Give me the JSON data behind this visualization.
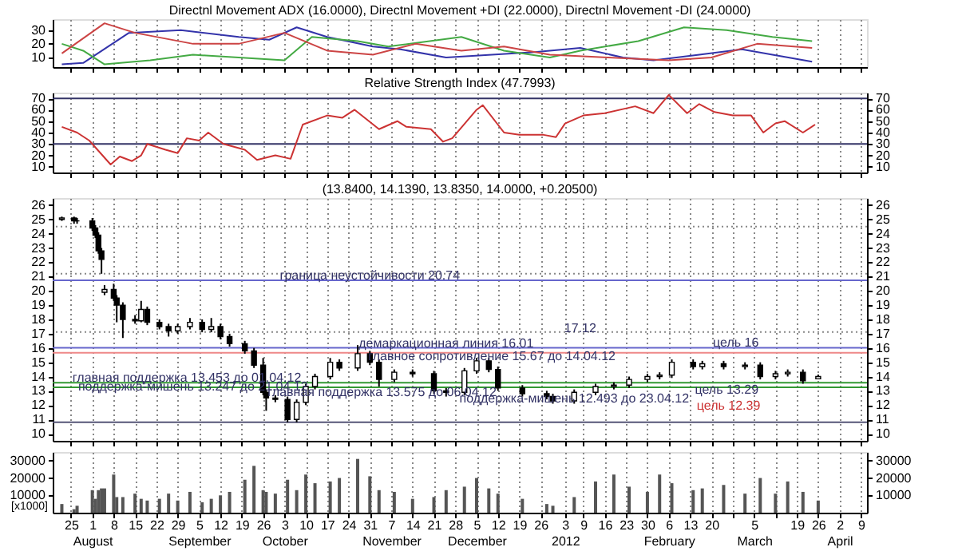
{
  "chart_data": [
    {
      "type": "line",
      "title": "Directnl Movement ADX (16.0000), Directnl Movement +DI (22.0000), Directnl Movement -DI (24.0000)",
      "xlim": [
        "2011-07-19",
        "2012-04-11"
      ],
      "ylim": [
        3,
        38
      ],
      "yticks": [
        10,
        20,
        30
      ],
      "grid": "x",
      "tick_labels": "y",
      "xticks": [
        "2011-07-25",
        "2011-08-01",
        "2011-08-08",
        "2011-08-15",
        "2011-08-22",
        "2011-08-29",
        "2011-09-05",
        "2011-09-12",
        "2011-09-19",
        "2011-09-26",
        "2011-10-03",
        "2011-10-10",
        "2011-10-17",
        "2011-10-24",
        "2011-10-31",
        "2011-11-07",
        "2011-11-14",
        "2011-11-21",
        "2011-11-28",
        "2011-12-05",
        "2011-12-12",
        "2011-12-19",
        "2011-12-26",
        "2012-01-03",
        "2012-01-09",
        "2012-01-16",
        "2012-01-23",
        "2012-01-30",
        "2012-02-06",
        "2012-02-13",
        "2012-02-20",
        "2012-02-27",
        "2012-03-05",
        "2012-03-12",
        "2012-03-19",
        "2012-03-26",
        "2012-04-02",
        "2012-04-09"
      ],
      "series": [
        {
          "color": "#3333aa",
          "x": [
            "2011-07-22",
            "2011-07-29",
            "2011-08-13",
            "2011-08-30",
            "2011-09-18",
            "2011-09-28",
            "2011-10-07",
            "2011-10-17",
            "2011-11-01",
            "2011-11-10",
            "2011-11-25",
            "2011-12-10",
            "2011-12-24",
            "2012-01-08",
            "2012-01-22",
            "2012-02-01",
            "2012-02-16",
            "2012-03-01",
            "2012-03-11",
            "2012-03-24"
          ],
          "values": [
            5,
            6,
            28,
            30,
            25,
            23,
            32,
            25,
            18,
            16,
            10,
            12,
            14,
            17,
            10,
            8,
            12,
            16,
            12,
            7
          ]
        },
        {
          "color": "#44aa44",
          "x": [
            "2011-07-22",
            "2011-07-29",
            "2011-08-05",
            "2011-08-20",
            "2011-09-03",
            "2011-09-18",
            "2011-10-03",
            "2011-10-12",
            "2011-10-27",
            "2011-11-06",
            "2011-11-30",
            "2011-12-14",
            "2011-12-29",
            "2012-01-08",
            "2012-01-27",
            "2012-02-11",
            "2012-02-25",
            "2012-03-11",
            "2012-03-24"
          ],
          "values": [
            20,
            15,
            5,
            8,
            12,
            10,
            8,
            25,
            22,
            18,
            25,
            15,
            10,
            15,
            22,
            32,
            30,
            25,
            22
          ]
        },
        {
          "color": "#cc4444",
          "x": [
            "2011-07-22",
            "2011-08-05",
            "2011-08-15",
            "2011-09-03",
            "2011-09-18",
            "2011-10-03",
            "2011-10-17",
            "2011-11-01",
            "2011-11-15",
            "2011-11-30",
            "2011-12-14",
            "2011-12-29",
            "2012-01-17",
            "2012-02-06",
            "2012-02-20",
            "2012-03-06",
            "2012-03-24"
          ],
          "values": [
            13,
            35,
            28,
            20,
            20,
            28,
            15,
            12,
            20,
            15,
            18,
            12,
            10,
            8,
            10,
            20,
            17
          ]
        }
      ]
    },
    {
      "type": "line",
      "title": "Relative Strength Index (47.7993)",
      "xlim": [
        "2011-07-19",
        "2012-04-11"
      ],
      "ylim": [
        5,
        75
      ],
      "yticks": [
        10,
        20,
        30,
        40,
        50,
        60,
        70
      ],
      "y2lim": [
        5,
        75
      ],
      "y2ticks": [
        10,
        20,
        30,
        40,
        50,
        60,
        70
      ],
      "grid": "x",
      "tick_labels": "y",
      "xticks": [
        "2011-07-25",
        "2011-08-01",
        "2011-08-08",
        "2011-08-15",
        "2011-08-22",
        "2011-08-29",
        "2011-09-05",
        "2011-09-12",
        "2011-09-19",
        "2011-09-26",
        "2011-10-03",
        "2011-10-10",
        "2011-10-17",
        "2011-10-24",
        "2011-10-31",
        "2011-11-07",
        "2011-11-14",
        "2011-11-21",
        "2011-11-28",
        "2011-12-05",
        "2011-12-12",
        "2011-12-19",
        "2011-12-26",
        "2012-01-03",
        "2012-01-09",
        "2012-01-16",
        "2012-01-23",
        "2012-01-30",
        "2012-02-06",
        "2012-02-13",
        "2012-02-20",
        "2012-02-27",
        "2012-03-05",
        "2012-03-12",
        "2012-03-19",
        "2012-03-26",
        "2012-04-02",
        "2012-04-09"
      ],
      "ref_lines": [
        {
          "axis": "y",
          "value": 70,
          "color": "#333366"
        },
        {
          "axis": "y",
          "value": 30,
          "color": "#333366"
        }
      ],
      "series": [
        {
          "color": "#cc3333",
          "x": [
            "2011-07-22",
            "2011-07-27",
            "2011-07-31",
            "2011-08-06",
            "2011-08-07",
            "2011-08-10",
            "2011-08-14",
            "2011-08-17",
            "2011-08-19",
            "2011-08-25",
            "2011-08-29",
            "2011-09-01",
            "2011-09-05",
            "2011-09-08",
            "2011-09-13",
            "2011-09-20",
            "2011-09-24",
            "2011-09-30",
            "2011-10-05",
            "2011-10-09",
            "2011-10-17",
            "2011-10-22",
            "2011-10-26",
            "2011-11-03",
            "2011-11-09",
            "2011-11-12",
            "2011-11-20",
            "2011-11-24",
            "2011-11-27",
            "2011-12-05",
            "2011-12-07",
            "2011-12-14",
            "2011-12-19",
            "2011-12-27",
            "2011-12-31",
            "2012-01-03",
            "2012-01-09",
            "2012-01-16",
            "2012-01-26",
            "2012-02-01",
            "2012-02-06",
            "2012-02-12",
            "2012-02-16",
            "2012-02-21",
            "2012-02-27",
            "2012-03-04",
            "2012-03-08",
            "2012-03-12",
            "2012-03-15",
            "2012-03-21",
            "2012-03-25"
          ],
          "values": [
            45,
            40,
            33,
            15,
            12,
            19,
            15,
            20,
            30,
            25,
            22,
            35,
            33,
            40,
            30,
            25,
            16,
            20,
            17,
            47,
            55,
            53,
            60,
            43,
            50,
            45,
            43,
            32,
            35,
            60,
            64,
            40,
            38,
            38,
            36,
            48,
            55,
            57,
            63,
            57,
            73,
            57,
            65,
            58,
            55,
            55,
            40,
            48,
            50,
            40,
            47
          ]
        }
      ]
    },
    {
      "type": "candlestick",
      "title": "(13.8400, 14.1390, 13.8350, 14.0000, +0.20500)",
      "xlim": [
        "2011-07-19",
        "2012-04-11"
      ],
      "ylim": [
        9.5,
        26.5
      ],
      "yticks": [
        10,
        11,
        12,
        13,
        14,
        15,
        16,
        17,
        18,
        19,
        20,
        21,
        22,
        23,
        24,
        25,
        26
      ],
      "y2lim": [
        9.5,
        26.5
      ],
      "y2ticks": [
        10,
        11,
        12,
        13,
        14,
        15,
        16,
        17,
        18,
        19,
        20,
        21,
        22,
        23,
        24,
        25,
        26
      ],
      "grid": "x",
      "tick_labels": "y",
      "xticks": [
        "2011-07-25",
        "2011-08-01",
        "2011-08-08",
        "2011-08-15",
        "2011-08-22",
        "2011-08-29",
        "2011-09-05",
        "2011-09-12",
        "2011-09-19",
        "2011-09-26",
        "2011-10-03",
        "2011-10-10",
        "2011-10-17",
        "2011-10-24",
        "2011-10-31",
        "2011-11-07",
        "2011-11-14",
        "2011-11-21",
        "2011-11-28",
        "2011-12-05",
        "2011-12-12",
        "2011-12-19",
        "2011-12-26",
        "2012-01-03",
        "2012-01-09",
        "2012-01-16",
        "2012-01-23",
        "2012-01-30",
        "2012-02-06",
        "2012-02-13",
        "2012-02-20",
        "2012-02-27",
        "2012-03-05",
        "2012-03-12",
        "2012-03-19",
        "2012-03-26",
        "2012-04-02",
        "2012-04-09"
      ],
      "x": [
        "2011-07-22",
        "2011-07-26",
        "2011-07-27",
        "2011-08-01",
        "2011-08-02",
        "2011-08-03",
        "2011-08-04",
        "2011-08-05",
        "2011-08-08",
        "2011-08-09",
        "2011-08-11",
        "2011-08-15",
        "2011-08-17",
        "2011-08-19",
        "2011-08-23",
        "2011-08-26",
        "2011-08-29",
        "2011-09-02",
        "2011-09-06",
        "2011-09-09",
        "2011-09-12",
        "2011-09-15",
        "2011-09-20",
        "2011-09-23",
        "2011-09-26",
        "2011-09-27",
        "2011-09-30",
        "2011-10-04",
        "2011-10-07",
        "2011-10-10",
        "2011-10-13",
        "2011-10-18",
        "2011-10-21",
        "2011-10-27",
        "2011-10-31",
        "2011-11-03",
        "2011-11-08",
        "2011-11-14",
        "2011-11-21",
        "2011-11-25",
        "2011-12-01",
        "2011-12-05",
        "2011-12-09",
        "2011-12-12",
        "2011-12-20",
        "2011-12-28",
        "2011-12-30",
        "2012-01-06",
        "2012-01-13",
        "2012-01-19",
        "2012-01-24",
        "2012-01-30",
        "2012-02-03",
        "2012-02-07",
        "2012-02-14",
        "2012-02-17",
        "2012-02-24",
        "2012-03-02",
        "2012-03-07",
        "2012-03-12",
        "2012-03-16",
        "2012-03-21",
        "2012-03-26"
      ],
      "ohlc": [
        [
          25.0,
          25.2,
          24.9,
          25.1
        ],
        [
          25.1,
          25.2,
          24.7,
          24.9
        ],
        [
          24.9,
          25.1,
          24.7,
          24.9
        ],
        [
          24.9,
          25.1,
          24.2,
          24.4
        ],
        [
          24.4,
          24.6,
          23.7,
          23.9
        ],
        [
          23.9,
          24.1,
          22.6,
          22.8
        ],
        [
          22.8,
          23.0,
          21.2,
          22.2
        ],
        [
          19.9,
          20.4,
          19.7,
          20.1
        ],
        [
          20.1,
          20.5,
          19.3,
          19.5
        ],
        [
          19.5,
          19.7,
          17.8,
          19.0
        ],
        [
          19.0,
          19.2,
          16.7,
          18.0
        ],
        [
          18.0,
          18.3,
          17.7,
          17.9
        ],
        [
          17.9,
          19.3,
          17.8,
          18.7
        ],
        [
          18.7,
          18.9,
          17.6,
          17.8
        ],
        [
          17.8,
          18.0,
          17.3,
          17.5
        ],
        [
          17.5,
          17.7,
          16.8,
          17.2
        ],
        [
          17.2,
          17.7,
          17.0,
          17.5
        ],
        [
          17.5,
          18.1,
          17.3,
          17.8
        ],
        [
          17.8,
          18.0,
          17.1,
          17.3
        ],
        [
          17.3,
          18.1,
          17.1,
          17.5
        ],
        [
          17.5,
          17.7,
          16.6,
          16.8
        ],
        [
          16.8,
          17.0,
          16.1,
          16.3
        ],
        [
          16.3,
          16.5,
          15.6,
          15.8
        ],
        [
          15.8,
          16.0,
          14.6,
          14.8
        ],
        [
          14.8,
          15.3,
          12.7,
          12.9
        ],
        [
          12.9,
          13.1,
          11.6,
          12.5
        ],
        [
          12.5,
          12.7,
          12.2,
          12.4
        ],
        [
          12.4,
          12.6,
          10.8,
          11.0
        ],
        [
          11.0,
          12.4,
          10.8,
          12.2
        ],
        [
          12.2,
          13.5,
          12.0,
          13.3
        ],
        [
          13.3,
          14.2,
          13.1,
          14.0
        ],
        [
          14.0,
          15.3,
          13.8,
          15.0
        ],
        [
          15.0,
          15.2,
          14.4,
          14.6
        ],
        [
          14.6,
          16.2,
          14.4,
          15.6
        ],
        [
          15.6,
          15.8,
          14.8,
          15.0
        ],
        [
          15.0,
          15.2,
          13.3,
          13.8
        ],
        [
          13.8,
          14.5,
          13.6,
          14.3
        ],
        [
          14.3,
          14.5,
          14.0,
          14.2
        ],
        [
          14.2,
          14.4,
          12.8,
          13.0
        ],
        [
          13.0,
          13.2,
          12.6,
          12.9
        ],
        [
          12.9,
          14.6,
          12.7,
          14.4
        ],
        [
          14.4,
          15.3,
          14.2,
          15.1
        ],
        [
          15.1,
          15.3,
          14.3,
          14.5
        ],
        [
          14.5,
          14.7,
          13.0,
          13.2
        ],
        [
          13.2,
          13.4,
          12.6,
          12.8
        ],
        [
          12.8,
          13.0,
          12.4,
          12.6
        ],
        [
          12.6,
          12.8,
          12.1,
          12.3
        ],
        [
          12.3,
          13.1,
          12.1,
          12.9
        ],
        [
          12.9,
          13.5,
          12.7,
          13.3
        ],
        [
          13.3,
          13.6,
          13.1,
          13.4
        ],
        [
          13.4,
          14.0,
          13.2,
          13.8
        ],
        [
          13.8,
          14.2,
          13.6,
          14.0
        ],
        [
          14.0,
          14.3,
          13.8,
          14.1
        ],
        [
          14.1,
          15.2,
          13.9,
          15.0
        ],
        [
          15.0,
          15.2,
          14.5,
          14.7
        ],
        [
          14.7,
          15.1,
          14.5,
          14.9
        ],
        [
          14.9,
          15.1,
          14.5,
          14.7
        ],
        [
          14.7,
          15.0,
          14.5,
          14.8
        ],
        [
          14.8,
          15.0,
          13.8,
          14.0
        ],
        [
          14.0,
          14.4,
          13.8,
          14.2
        ],
        [
          14.2,
          14.5,
          14.0,
          14.3
        ],
        [
          14.3,
          14.5,
          13.5,
          13.7
        ],
        [
          13.84,
          14.139,
          13.835,
          14.0
        ]
      ],
      "ref_lines": [
        {
          "axis": "y",
          "value": 24.5,
          "color": "#888888",
          "line_style": "dotted"
        },
        {
          "axis": "y",
          "value": 21.2,
          "color": "#888888",
          "line_style": "dotted"
        },
        {
          "axis": "y",
          "value": 20.74,
          "color": "#6666cc",
          "line_style": "solid"
        },
        {
          "axis": "y",
          "value": 17.12,
          "color": "#888888",
          "line_style": "dotted"
        },
        {
          "axis": "y",
          "value": 16.01,
          "color": "#6666cc",
          "line_style": "solid"
        },
        {
          "axis": "y",
          "value": 15.67,
          "color": "#ee8888",
          "line_style": "solid"
        },
        {
          "axis": "y",
          "value": 13.575,
          "color": "#339933",
          "line_style": "solid"
        },
        {
          "axis": "y",
          "value": 13.247,
          "color": "#339933",
          "line_style": "solid"
        },
        {
          "axis": "y",
          "value": 10.8,
          "color": "#555577",
          "line_style": "solid"
        }
      ],
      "annotations": [
        {
          "text": "граница неустойчивости 20.74",
          "x": "2011-10-31",
          "y": 21.0
        },
        {
          "text": "17.12",
          "x": "2012-01-08",
          "y": 17.35
        },
        {
          "text": "демаркационная линия 16.01",
          "x": "2011-11-25",
          "y": 16.25
        },
        {
          "text": "главное сопротивление 15.67 до 14.04.12",
          "x": "2011-12-10",
          "y": 15.35
        },
        {
          "text": "главная поддержка 13.453 до 01.04.12",
          "x": "2011-09-01",
          "y": 13.85
        },
        {
          "text": "поддержка-мишень 13.247 до 21.04.12",
          "x": "2011-09-03",
          "y": 13.247
        },
        {
          "text": "главная поддержка 13.575 до 06.04.12",
          "x": "2011-11-04",
          "y": 12.85
        },
        {
          "text": "поддержка-мишень 12.493 до 23.04.12",
          "x": "2012-01-06",
          "y": 12.4
        },
        {
          "text": "цель 16",
          "x": "2012-02-28",
          "y": 16.35
        },
        {
          "text": "цель 13.29",
          "x": "2012-02-25",
          "y": 13.0
        },
        "цель 12.39"
      ]
    },
    {
      "type": "bar",
      "xlim": [
        "2011-07-19",
        "2012-04-11"
      ],
      "ylim": [
        0,
        35000
      ],
      "yticks": [
        10000,
        20000,
        30000
      ],
      "y2lim": [
        0,
        35000
      ],
      "y2ticks": [
        10000,
        20000,
        30000
      ],
      "grid": "x",
      "color": "#555555",
      "xticks": [
        {
          "value": "2011-07-25",
          "label": "25"
        },
        {
          "value": "2011-08-01",
          "label": "1\nAugust"
        },
        {
          "value": "2011-08-08",
          "label": "8"
        },
        {
          "value": "2011-08-15",
          "label": "15"
        },
        {
          "value": "2011-08-22",
          "label": "22"
        },
        {
          "value": "2011-08-29",
          "label": "29"
        },
        {
          "value": "2011-09-05",
          "label": "5\nSeptember"
        },
        {
          "value": "2011-09-12",
          "label": "12"
        },
        {
          "value": "2011-09-19",
          "label": "19"
        },
        {
          "value": "2011-09-26",
          "label": "26"
        },
        {
          "value": "2011-10-03",
          "label": "3\nOctober"
        },
        {
          "value": "2011-10-10",
          "label": "10"
        },
        {
          "value": "2011-10-17",
          "label": "17"
        },
        {
          "value": "2011-10-24",
          "label": "24"
        },
        {
          "value": "2011-10-31",
          "label": "31"
        },
        {
          "value": "2011-11-07",
          "label": "7\nNovember"
        },
        {
          "value": "2011-11-14",
          "label": "14"
        },
        {
          "value": "2011-11-21",
          "label": "21"
        },
        {
          "value": "2011-11-28",
          "label": "28"
        },
        {
          "value": "2011-12-05",
          "label": "5\nDecember"
        },
        {
          "value": "2011-12-12",
          "label": "12"
        },
        {
          "value": "2011-12-19",
          "label": "19"
        },
        {
          "value": "2011-12-26",
          "label": "26"
        },
        {
          "value": "2012-01-03",
          "label": "3\n2012"
        },
        {
          "value": "2012-01-09",
          "label": "9"
        },
        {
          "value": "2012-01-16",
          "label": "16"
        },
        {
          "value": "2012-01-23",
          "label": "23"
        },
        {
          "value": "2012-01-30",
          "label": "30"
        },
        {
          "value": "2012-02-06",
          "label": "6\nFebruary"
        },
        {
          "value": "2012-02-13",
          "label": "13"
        },
        {
          "value": "2012-02-20",
          "label": "20"
        },
        {
          "value": "2012-02-27",
          "label": null
        },
        {
          "value": "2012-03-05",
          "label": "5\nMarch"
        },
        {
          "value": "2012-03-12",
          "label": null
        },
        {
          "value": "2012-03-19",
          "label": "19"
        },
        {
          "value": "2012-03-26",
          "label": "26"
        },
        {
          "value": "2012-04-02",
          "label": "2\nApril"
        },
        {
          "value": "2012-04-09",
          "label": "9"
        }
      ],
      "x": [
        "2011-07-22",
        "2011-07-26",
        "2011-07-27",
        "2011-08-01",
        "2011-08-02",
        "2011-08-03",
        "2011-08-04",
        "2011-08-05",
        "2011-08-08",
        "2011-08-09",
        "2011-08-11",
        "2011-08-15",
        "2011-08-17",
        "2011-08-19",
        "2011-08-23",
        "2011-08-26",
        "2011-08-29",
        "2011-09-02",
        "2011-09-06",
        "2011-09-09",
        "2011-09-12",
        "2011-09-15",
        "2011-09-20",
        "2011-09-23",
        "2011-09-26",
        "2011-09-27",
        "2011-09-30",
        "2011-10-04",
        "2011-10-07",
        "2011-10-10",
        "2011-10-13",
        "2011-10-18",
        "2011-10-21",
        "2011-10-27",
        "2011-10-31",
        "2011-11-03",
        "2011-11-08",
        "2011-11-14",
        "2011-11-21",
        "2011-11-25",
        "2011-12-01",
        "2011-12-05",
        "2011-12-09",
        "2011-12-12",
        "2011-12-20",
        "2011-12-28",
        "2011-12-30",
        "2012-01-06",
        "2012-01-13",
        "2012-01-19",
        "2012-01-24",
        "2012-01-30",
        "2012-02-03",
        "2012-02-07",
        "2012-02-14",
        "2012-02-17",
        "2012-02-24",
        "2012-03-02",
        "2012-03-07",
        "2012-03-12",
        "2012-03-16",
        "2012-03-21",
        "2012-03-26"
      ],
      "values": [
        5000,
        2000,
        4000,
        13000,
        8000,
        13000,
        14000,
        14000,
        22000,
        9000,
        9000,
        11000,
        8000,
        7000,
        8000,
        11000,
        7000,
        12000,
        6000,
        8000,
        10000,
        12000,
        19000,
        27000,
        13000,
        12000,
        11000,
        19000,
        13000,
        22000,
        17000,
        18000,
        20000,
        31000,
        21000,
        13000,
        12000,
        8000,
        9000,
        13000,
        15000,
        20000,
        14000,
        11000,
        8000,
        5000,
        4000,
        9000,
        18000,
        22000,
        15000,
        12000,
        22000,
        17000,
        13000,
        14000,
        16000,
        11000,
        20000,
        11000,
        18000,
        12000,
        7000
      ],
      "annotations": [
        "[x1000]"
      ]
    }
  ]
}
